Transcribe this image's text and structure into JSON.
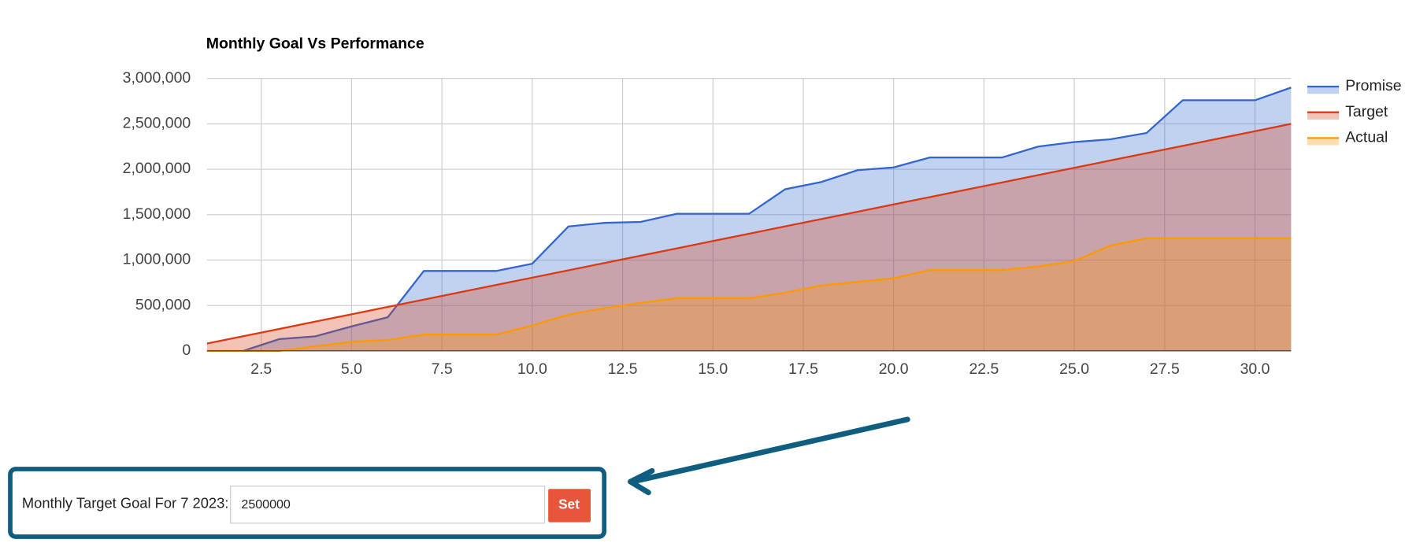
{
  "chart_data": {
    "type": "area",
    "title": "Monthly Goal Vs Performance",
    "x": [
      1,
      2,
      3,
      4,
      5,
      6,
      7,
      8,
      9,
      10,
      11,
      12,
      13,
      14,
      15,
      16,
      17,
      18,
      19,
      20,
      21,
      22,
      23,
      24,
      25,
      26,
      27,
      28,
      29,
      30,
      31
    ],
    "series": [
      {
        "name": "Promise",
        "color": "#3366cc",
        "values": [
          null,
          0,
          130000,
          160000,
          270000,
          370000,
          880000,
          880000,
          880000,
          960000,
          1370000,
          1410000,
          1420000,
          1510000,
          1510000,
          1510000,
          1780000,
          1860000,
          1990000,
          2020000,
          2130000,
          2130000,
          2130000,
          2250000,
          2300000,
          2330000,
          2400000,
          2760000,
          2760000,
          2760000,
          2900000
        ]
      },
      {
        "name": "Target",
        "color": "#dc3912",
        "values": [
          80645,
          161290,
          241935,
          322581,
          403226,
          483871,
          564516,
          645161,
          725806,
          806452,
          887097,
          967742,
          1048387,
          1129032,
          1209677,
          1290323,
          1370968,
          1451613,
          1532258,
          1612903,
          1693548,
          1774194,
          1854839,
          1935484,
          2016129,
          2096774,
          2177419,
          2258065,
          2338710,
          2419355,
          2500000
        ]
      },
      {
        "name": "Actual",
        "color": "#ff9900",
        "values": [
          0,
          0,
          0,
          50000,
          100000,
          120000,
          180000,
          180000,
          180000,
          280000,
          400000,
          470000,
          530000,
          580000,
          580000,
          580000,
          640000,
          720000,
          760000,
          800000,
          890000,
          890000,
          890000,
          930000,
          990000,
          1160000,
          1240000,
          1240000,
          1240000,
          1240000,
          1240000
        ]
      }
    ],
    "xlim": [
      1,
      31
    ],
    "xticks": [
      2.5,
      {
        "value": 5,
        "label": "5.0"
      },
      7.5,
      {
        "value": 10,
        "label": "10.0"
      },
      12.5,
      {
        "value": 15,
        "label": "15.0"
      },
      17.5,
      {
        "value": 20,
        "label": "20.0"
      },
      22.5,
      {
        "value": 25,
        "label": "25.0"
      },
      27.5,
      {
        "value": 30,
        "label": "30.0"
      }
    ],
    "ylim": [
      0,
      3000000
    ],
    "yticks": [
      0,
      {
        "value": 500000,
        "label": "500,000"
      },
      {
        "value": 1000000,
        "label": "1,000,000"
      },
      {
        "value": 1500000,
        "label": "1,500,000"
      },
      {
        "value": 2000000,
        "label": "2,000,000"
      },
      {
        "value": 2500000,
        "label": "2,500,000"
      },
      {
        "value": 3000000,
        "label": "3,000,000"
      }
    ],
    "grid": true,
    "legend": "right"
  },
  "form": {
    "label": "Monthly Target Goal For 7 2023:",
    "input": "2500000",
    "button": "Set"
  }
}
